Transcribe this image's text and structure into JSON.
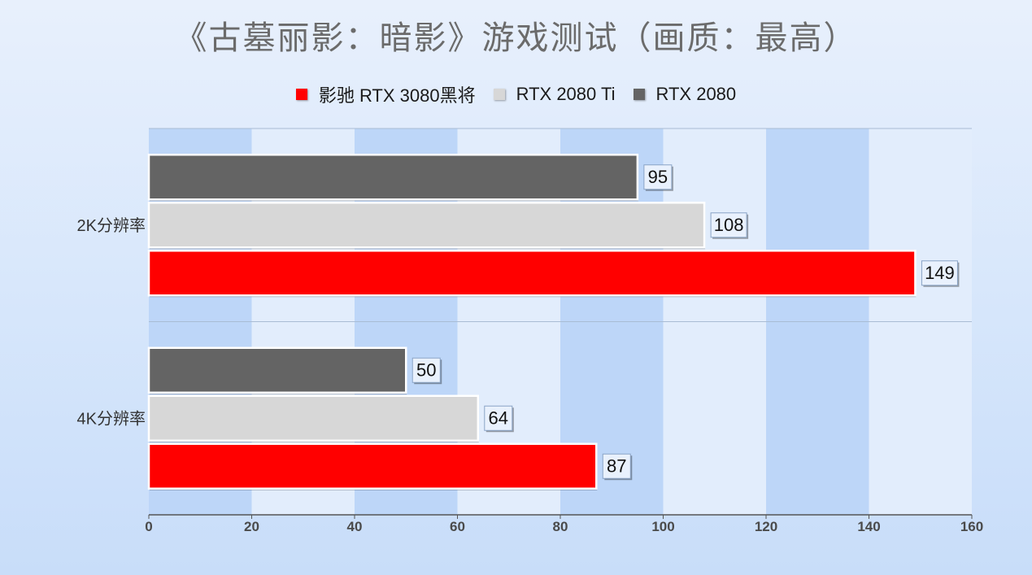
{
  "chart_data": {
    "type": "bar",
    "orientation": "horizontal",
    "title": "《古墓丽影：暗影》游戏测试（画质：最高）",
    "categories": [
      "2K分辨率",
      "4K分辨率"
    ],
    "series": [
      {
        "name": "RTX 2080",
        "color": "#646464",
        "values": [
          95,
          50
        ]
      },
      {
        "name": "RTX 2080 Ti",
        "color": "#d7d7d7",
        "values": [
          108,
          64
        ]
      },
      {
        "name": "影驰 RTX 3080黑将",
        "color": "#ff0000",
        "values": [
          149,
          87
        ]
      }
    ],
    "legend_order": [
      "影驰 RTX 3080黑将",
      "RTX 2080 Ti",
      "RTX 2080"
    ],
    "legend_position": "top",
    "xlim": [
      0,
      160
    ],
    "xticks": [
      "0",
      "20",
      "40",
      "60",
      "80",
      "100",
      "120",
      "140",
      "160"
    ],
    "xlabel": "",
    "ylabel": "",
    "data_labels": true,
    "background_bands": true
  }
}
